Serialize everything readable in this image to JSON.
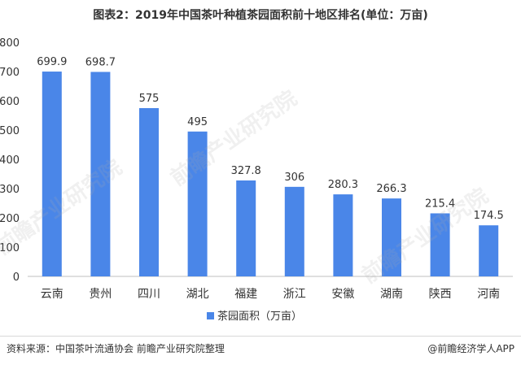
{
  "title": "图表2：2019年中国茶叶种植茶园面积前十地区排名(单位：万亩)",
  "source": "资料来源：中国茶叶流通协会 前瞻产业研究院整理",
  "credit": "@前瞻经济学人APP",
  "watermark": "前瞻产业研究院",
  "colors": {
    "bar": "#4a86e8",
    "axis": "#bfbfbf",
    "text": "#333333"
  },
  "chart_data": {
    "type": "bar",
    "title": "图表2：2019年中国茶叶种植茶园面积前十地区排名(单位：万亩)",
    "xlabel": "",
    "ylabel": "",
    "ylim": [
      0,
      800
    ],
    "yticks": [
      0,
      100,
      200,
      300,
      400,
      500,
      600,
      700,
      800
    ],
    "grid": false,
    "legend_position": "bottom",
    "categories": [
      "云南",
      "贵州",
      "四川",
      "湖北",
      "福建",
      "浙江",
      "安徽",
      "湖南",
      "陕西",
      "河南"
    ],
    "series": [
      {
        "name": "茶园面积（万亩）",
        "values": [
          699.9,
          698.7,
          575,
          495,
          327.8,
          306,
          280.3,
          266.3,
          215.4,
          174.5
        ]
      }
    ]
  }
}
